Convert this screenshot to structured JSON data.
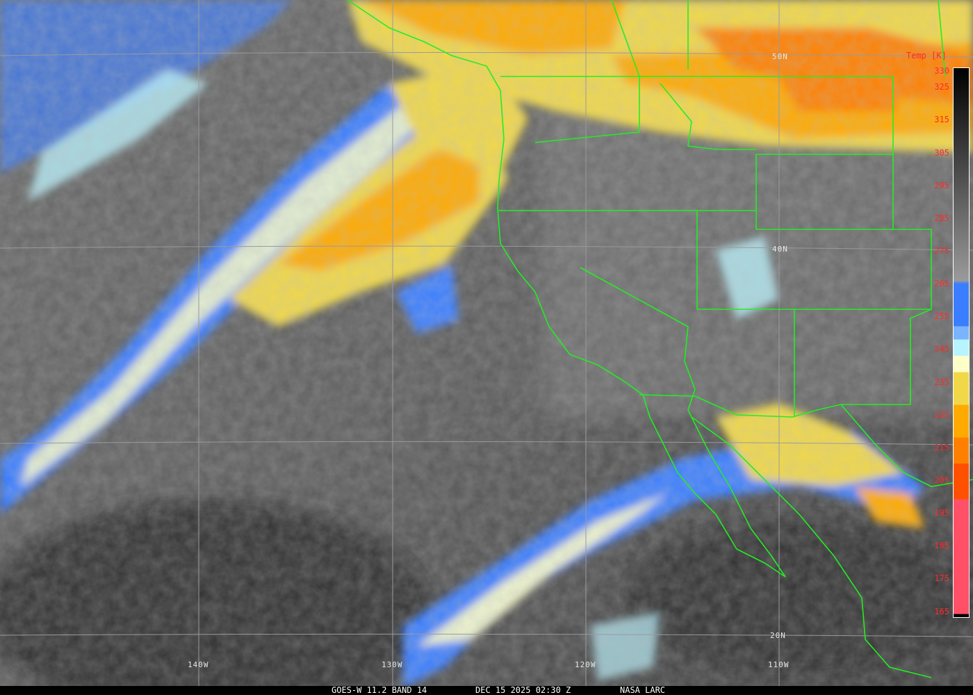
{
  "colorbar": {
    "title": "Temp [K]",
    "ticks": [
      "330",
      "325",
      "315",
      "305",
      "295",
      "285",
      "275",
      "265",
      "255",
      "245",
      "235",
      "225",
      "215",
      "205",
      "195",
      "185",
      "175",
      "165"
    ],
    "stops": [
      {
        "from": 330,
        "color": "#000000"
      },
      {
        "from": 266,
        "color": "#9a9a9a"
      },
      {
        "from": 265,
        "color": "#3a7eff"
      },
      {
        "from": 252,
        "color": "#7ab4ff"
      },
      {
        "from": 248,
        "color": "#b8f4ff"
      },
      {
        "from": 243,
        "color": "#ffffc8"
      },
      {
        "from": 238,
        "color": "#f0d848"
      },
      {
        "from": 228,
        "color": "#ffaa00"
      },
      {
        "from": 218,
        "color": "#ff8000"
      },
      {
        "from": 210,
        "color": "#ff5000"
      },
      {
        "from": 199,
        "color": "#ff5068"
      },
      {
        "from": 164,
        "color": "#000000"
      }
    ]
  },
  "graticule": {
    "lat_labels": [
      "50N",
      "40N",
      "20N"
    ],
    "lon_labels": [
      "140W",
      "130W",
      "120W",
      "110W"
    ]
  },
  "footer": {
    "satellite": "GOES-W 11.2 BAND 14",
    "datetime": "DEC 15 2025 02:30 Z",
    "credit": "NASA LARC"
  },
  "colors": {
    "borders": "#22ee22",
    "graticule": "#9a9aa0",
    "labels": "#ff2a2a"
  }
}
